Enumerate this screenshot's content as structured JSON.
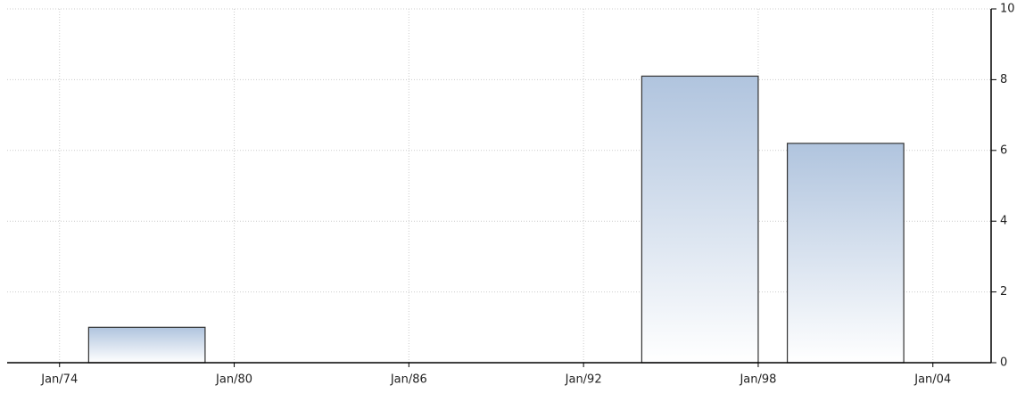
{
  "chart_data": {
    "type": "bar",
    "x": [
      1977,
      1996,
      2001
    ],
    "values": [
      1,
      8.1,
      6.2
    ],
    "color": "#b0c4de",
    "xlim": [
      1972.2,
      2006
    ],
    "xticks": [
      {
        "value": 1974,
        "label": "Jan/74"
      },
      {
        "value": 1980,
        "label": "Jan/80"
      },
      {
        "value": 1986,
        "label": "Jan/86"
      },
      {
        "value": 1992,
        "label": "Jan/92"
      },
      {
        "value": 1998,
        "label": "Jan/98"
      },
      {
        "value": 2004,
        "label": "Jan/04"
      }
    ],
    "ylim": [
      0,
      10
    ],
    "yticks": [
      0,
      2,
      4,
      6,
      8,
      10
    ],
    "grid": true
  }
}
